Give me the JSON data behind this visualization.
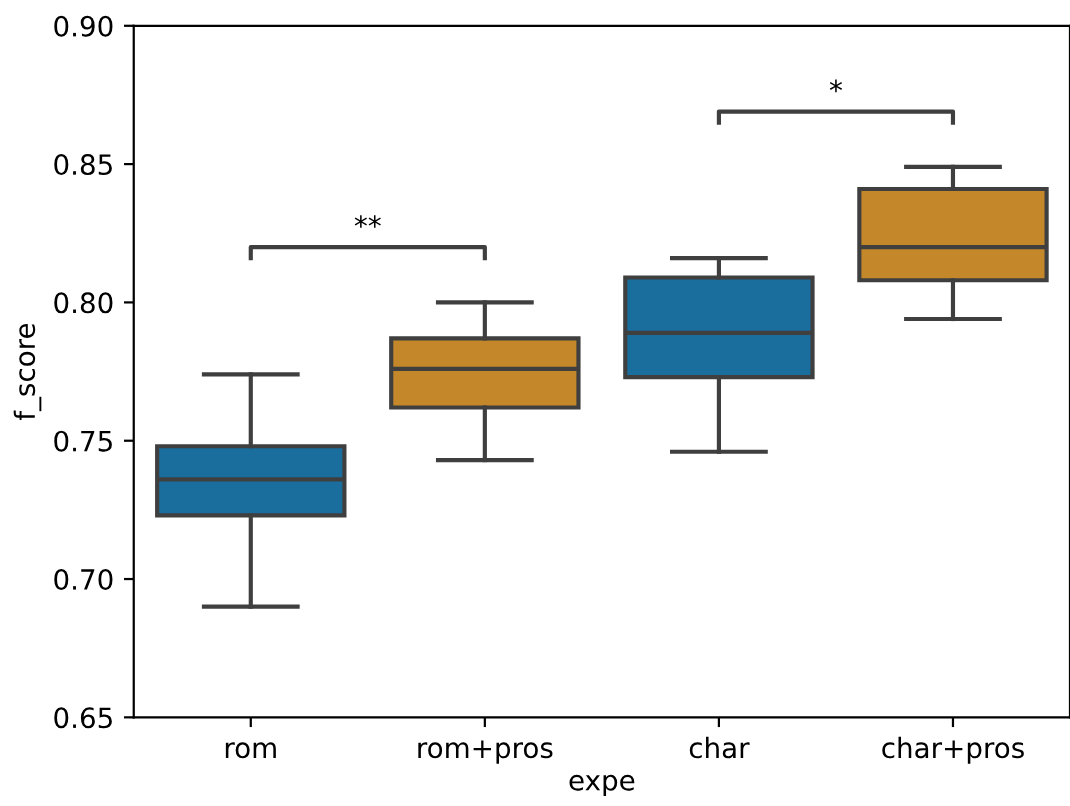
{
  "chart_data": {
    "type": "box",
    "xlabel": "expe",
    "ylabel": "f_score",
    "categories": [
      "rom",
      "rom+pros",
      "char",
      "char+pros"
    ],
    "colors": [
      "#1a6e9e",
      "#c4882a",
      "#1a6e9e",
      "#c4882a"
    ],
    "boxes": [
      {
        "low": 0.69,
        "q1": 0.723,
        "median": 0.736,
        "q3": 0.748,
        "high": 0.774
      },
      {
        "low": 0.743,
        "q1": 0.762,
        "median": 0.776,
        "q3": 0.787,
        "high": 0.8
      },
      {
        "low": 0.746,
        "q1": 0.773,
        "median": 0.789,
        "q3": 0.809,
        "high": 0.816
      },
      {
        "low": 0.794,
        "q1": 0.808,
        "median": 0.82,
        "q3": 0.841,
        "high": 0.849
      }
    ],
    "ylim": [
      0.65,
      0.9
    ],
    "yticks": [
      0.65,
      {
        "value": 0.7,
        "label": "0.70"
      },
      0.75,
      {
        "value": 0.8,
        "label": "0.80"
      },
      0.85,
      {
        "value": 0.9,
        "label": "0.90"
      }
    ],
    "annotations": [
      "**",
      "*"
    ]
  }
}
